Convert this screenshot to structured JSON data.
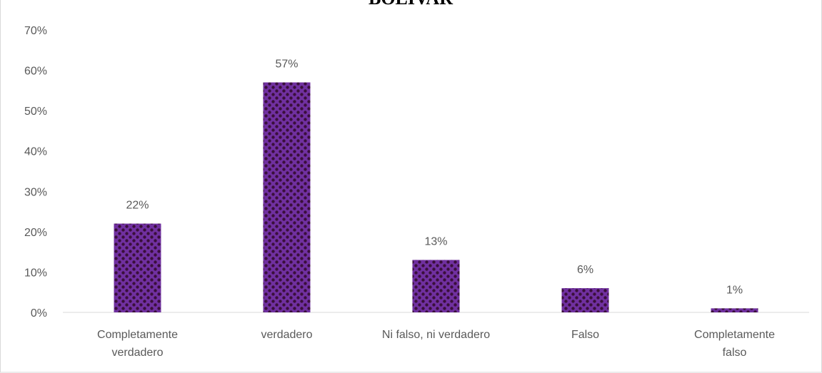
{
  "chart_data": {
    "type": "bar",
    "title": "BOLIVAR",
    "categories": [
      [
        "Completamente",
        "verdadero"
      ],
      [
        "verdadero"
      ],
      [
        "Ni falso, ni verdadero"
      ],
      [
        "Falso"
      ],
      [
        "Completamente",
        "falso"
      ]
    ],
    "values": [
      22,
      57,
      13,
      6,
      1
    ],
    "value_labels": [
      "22%",
      "57%",
      "13%",
      "6%",
      "1%"
    ],
    "color": "#7030a0",
    "ylim": [
      0,
      70
    ],
    "yticks": [
      {
        "value": 0,
        "label": "0%"
      },
      {
        "value": 10,
        "label": "10%"
      },
      {
        "value": 20,
        "label": "20%"
      },
      {
        "value": 30,
        "label": "30%"
      },
      {
        "value": 40,
        "label": "40%"
      },
      {
        "value": 50,
        "label": "50%"
      },
      {
        "value": 60,
        "label": "60%"
      },
      {
        "value": 70,
        "label": "70%"
      }
    ],
    "grid": false
  }
}
